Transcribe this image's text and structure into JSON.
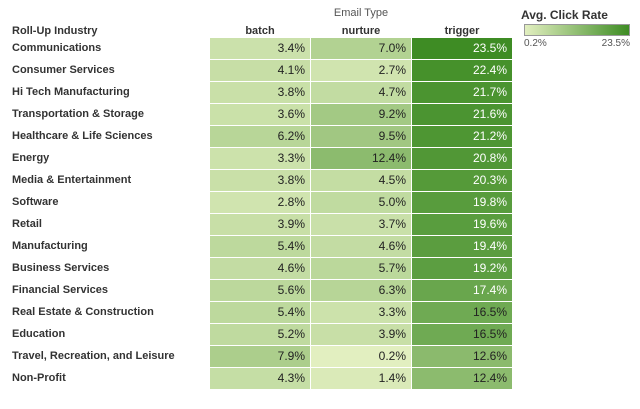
{
  "chart_data": {
    "type": "heatmap",
    "column_group_title": "Email Type",
    "row_header_title": "Roll-Up Industry",
    "columns": [
      "batch",
      "nurture",
      "trigger"
    ],
    "value_unit": "%",
    "rows": [
      {
        "label": "Communications",
        "values": [
          3.4,
          7.0,
          23.5
        ]
      },
      {
        "label": "Consumer Services",
        "values": [
          4.1,
          2.7,
          22.4
        ]
      },
      {
        "label": "Hi Tech Manufacturing",
        "values": [
          3.8,
          4.7,
          21.7
        ]
      },
      {
        "label": "Transportation & Storage",
        "values": [
          3.6,
          9.2,
          21.6
        ]
      },
      {
        "label": "Healthcare & Life Sciences",
        "values": [
          6.2,
          9.5,
          21.2
        ]
      },
      {
        "label": "Energy",
        "values": [
          3.3,
          12.4,
          20.8
        ]
      },
      {
        "label": "Media & Entertainment",
        "values": [
          3.8,
          4.5,
          20.3
        ]
      },
      {
        "label": "Software",
        "values": [
          2.8,
          5.0,
          19.8
        ]
      },
      {
        "label": "Retail",
        "values": [
          3.9,
          3.7,
          19.6
        ]
      },
      {
        "label": "Manufacturing",
        "values": [
          5.4,
          4.6,
          19.4
        ]
      },
      {
        "label": "Business Services",
        "values": [
          4.6,
          5.7,
          19.2
        ]
      },
      {
        "label": "Financial Services",
        "values": [
          5.6,
          6.3,
          17.4
        ]
      },
      {
        "label": "Real Estate & Construction",
        "values": [
          5.4,
          3.3,
          16.5
        ]
      },
      {
        "label": "Education",
        "values": [
          5.2,
          3.9,
          16.5
        ]
      },
      {
        "label": "Travel, Recreation, and Leisure",
        "values": [
          7.9,
          0.2,
          12.6
        ]
      },
      {
        "label": "Non-Profit",
        "values": [
          4.3,
          1.4,
          12.4
        ]
      }
    ],
    "legend": {
      "title": "Avg. Click Rate",
      "min_label": "0.2%",
      "max_label": "23.5%",
      "min": 0.2,
      "max": 23.5,
      "color_low": "#e2efc0",
      "color_high": "#3e8c24"
    }
  }
}
